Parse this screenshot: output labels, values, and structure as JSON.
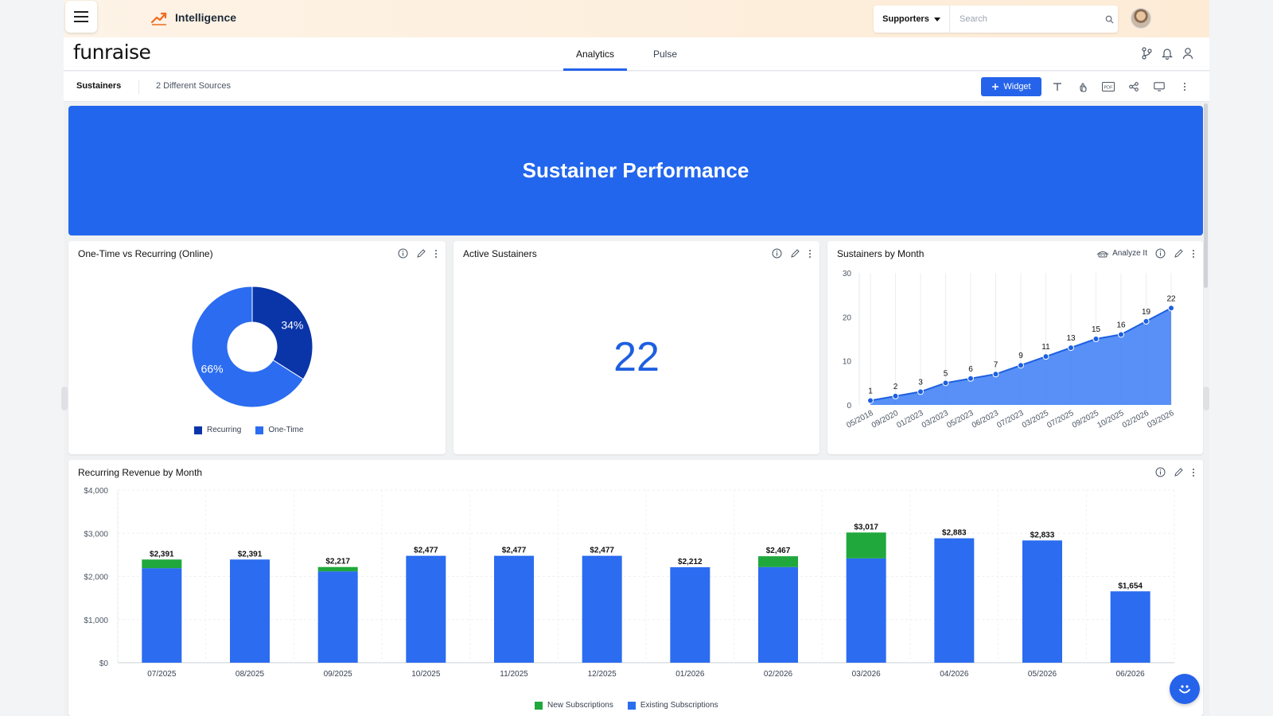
{
  "topbar": {
    "app_title": "Intelligence",
    "search_scope": "Supporters",
    "search_placeholder": "Search"
  },
  "header": {
    "brand": "funraise",
    "tabs": [
      {
        "label": "Analytics",
        "active": true
      },
      {
        "label": "Pulse",
        "active": false
      }
    ]
  },
  "toolbar": {
    "dashboard_label": "Sustainers",
    "sources": "2 Different Sources",
    "widget_button": "Widget"
  },
  "banner": {
    "title": "Sustainer Performance"
  },
  "cards": {
    "onetime_vs_recurring": {
      "title": "One-Time vs Recurring (Online)",
      "legend": [
        "Recurring",
        "One-Time"
      ]
    },
    "active_sustainers": {
      "title": "Active Sustainers",
      "value": "22"
    },
    "sustainers_by_month": {
      "title": "Sustainers by Month",
      "analyze_label": "Analyze It"
    },
    "recurring_revenue": {
      "title": "Recurring Revenue by Month",
      "legend": [
        "New Subscriptions",
        "Existing Subscriptions"
      ]
    }
  },
  "colors": {
    "accent": "#2563eb",
    "banner": "#2266ee",
    "recurring": "#0a35a8",
    "one_time": "#2b6cf0",
    "new_subs": "#20a83c",
    "existing_subs": "#2b6cf0",
    "line_area": "#3b7cf6"
  },
  "icons": [
    "menu-icon",
    "trend-icon",
    "search-icon",
    "branch-icon",
    "bell-icon",
    "user-icon",
    "plus-icon",
    "text-icon",
    "touch-icon",
    "pdf-icon",
    "share-icon",
    "monitor-icon",
    "more-icon",
    "info-icon",
    "pencil-icon",
    "analyze-icon",
    "chat-icon"
  ],
  "chart_data": [
    {
      "type": "pie",
      "labels": [
        "Recurring",
        "One-Time"
      ],
      "values": [
        34,
        66
      ],
      "value_labels": [
        "34%",
        "66%"
      ],
      "donut": true,
      "legend_position": "bottom"
    },
    {
      "type": "area",
      "categories": [
        "05/2018",
        "09/2020",
        "01/2023",
        "03/2023",
        "05/2023",
        "06/2023",
        "07/2023",
        "03/2025",
        "07/2025",
        "09/2025",
        "10/2025",
        "02/2026",
        "03/2026"
      ],
      "values": [
        1,
        2,
        3,
        5,
        6,
        7,
        9,
        11,
        13,
        15,
        16,
        19,
        22
      ],
      "yticks": [
        "0",
        "10",
        "20",
        "30"
      ],
      "ylim": [
        0,
        30
      ],
      "grid": "vertical"
    },
    {
      "type": "bar",
      "stacked": true,
      "categories": [
        "07/2025",
        "08/2025",
        "09/2025",
        "10/2025",
        "11/2025",
        "12/2025",
        "01/2026",
        "02/2026",
        "03/2026",
        "04/2026",
        "05/2026",
        "06/2026"
      ],
      "series": [
        {
          "name": "Existing Subscriptions",
          "values": [
            2191,
            2391,
            2117,
            2477,
            2477,
            2477,
            2212,
            2217,
            2417,
            2883,
            2833,
            1654
          ]
        },
        {
          "name": "New Subscriptions",
          "values": [
            200,
            0,
            100,
            0,
            0,
            0,
            0,
            250,
            600,
            0,
            0,
            0
          ]
        }
      ],
      "total_labels": [
        "$2,391",
        "$2,391",
        "$2,217",
        "$2,477",
        "$2,477",
        "$2,477",
        "$2,212",
        "$2,467",
        "$3,017",
        "$2,883",
        "$2,833",
        "$1,654"
      ],
      "yticks": [
        "$0",
        "$1,000",
        "$2,000",
        "$3,000",
        "$4,000"
      ],
      "ylim": [
        0,
        4000
      ],
      "legend_position": "bottom"
    }
  ]
}
